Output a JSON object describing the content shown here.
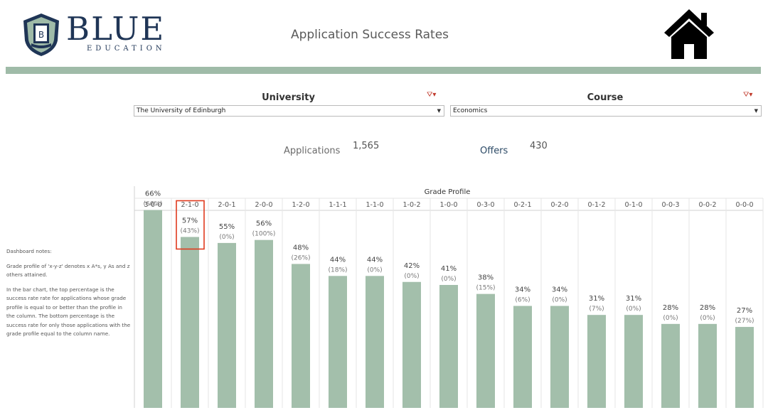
{
  "header": {
    "logo_word": "BLUE",
    "logo_sub": "EDUCATION",
    "logo_badge_letter": "B",
    "title": "Application Success Rates",
    "home_icon": "home-icon",
    "band_color": "#9fbba8"
  },
  "filters": {
    "university": {
      "label": "University",
      "value": "The University of Edinburgh"
    },
    "course": {
      "label": "Course",
      "value": "Economics"
    }
  },
  "kpis": {
    "applications_label": "Applications",
    "applications_value": "1,565",
    "offers_label": "Offers",
    "offers_value": "430"
  },
  "notes": {
    "heading": "Dashboard notes:",
    "p1": "Grade profile of 'x-y-z' denotes x A*s, y As and z others attained.",
    "p2": "In the bar chart, the top percentage is the success rate rate for applications whose grade profile is equal to or better than the profile in the column. The bottom percentage is the success rate for only those applications with the grade profile equal to the column name."
  },
  "chart_data": {
    "type": "bar",
    "title": "Grade Profile",
    "categories": [
      "3-0-0",
      "2-1-0",
      "2-0-1",
      "2-0-0",
      "1-2-0",
      "1-1-1",
      "1-1-0",
      "1-0-2",
      "1-0-0",
      "0-3-0",
      "0-2-1",
      "0-2-0",
      "0-1-2",
      "0-1-0",
      "0-0-3",
      "0-0-2",
      "0-0-0"
    ],
    "series": [
      {
        "values": [
          66,
          57,
          55,
          56,
          48,
          44,
          44,
          42,
          41,
          38,
          34,
          34,
          31,
          31,
          28,
          28,
          27
        ]
      },
      {
        "values": [
          66,
          43,
          0,
          100,
          26,
          18,
          0,
          0,
          0,
          15,
          6,
          0,
          7,
          0,
          0,
          0,
          27
        ]
      }
    ],
    "labels_top": [
      "66%",
      "57%",
      "55%",
      "56%",
      "48%",
      "44%",
      "44%",
      "42%",
      "41%",
      "38%",
      "34%",
      "34%",
      "31%",
      "31%",
      "28%",
      "28%",
      "27%"
    ],
    "labels_bottom": [
      "(66%)",
      "(43%)",
      "(0%)",
      "(100%)",
      "(26%)",
      "(18%)",
      "(0%)",
      "(0%)",
      "(0%)",
      "(15%)",
      "(6%)",
      "(0%)",
      "(7%)",
      "(0%)",
      "(0%)",
      "(0%)",
      "(27%)"
    ],
    "highlight_index": 1,
    "bar_color": "#a3bfab",
    "highlight_color": "#e03a1e",
    "grid": "vertical",
    "ylim": [
      0,
      100
    ]
  }
}
